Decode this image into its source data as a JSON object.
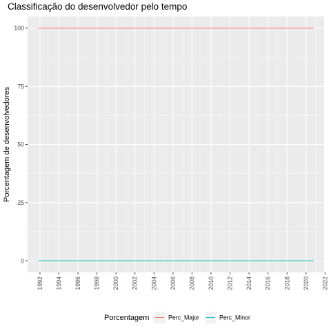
{
  "chart_data": {
    "type": "line",
    "title": "Classificação do desenvolvedor pelo tempo",
    "xlabel": "",
    "ylabel": "Porcentagem de desenvolvedores",
    "xlim": [
      1990.7,
      2021.9
    ],
    "ylim": [
      -5,
      105
    ],
    "x_ticks": [
      "1992",
      "1994",
      "1996",
      "1998",
      "2000",
      "2002",
      "2004",
      "2006",
      "2008",
      "2010",
      "2012",
      "2014",
      "2016",
      "2018",
      "2020",
      "2022"
    ],
    "y_ticks": [
      "0",
      "25",
      "50",
      "75",
      "100"
    ],
    "grid": true,
    "legend_position": "bottom",
    "legend_title": "Porcentagem",
    "series": [
      {
        "name": "Perc_Major",
        "color": "#F8766D",
        "x": [
          1991.8,
          2020.8
        ],
        "values": [
          100,
          100
        ]
      },
      {
        "name": "Perc_Minor",
        "color": "#00BFC4",
        "x": [
          1991.8,
          2020.8
        ],
        "values": [
          0,
          0
        ]
      }
    ]
  }
}
